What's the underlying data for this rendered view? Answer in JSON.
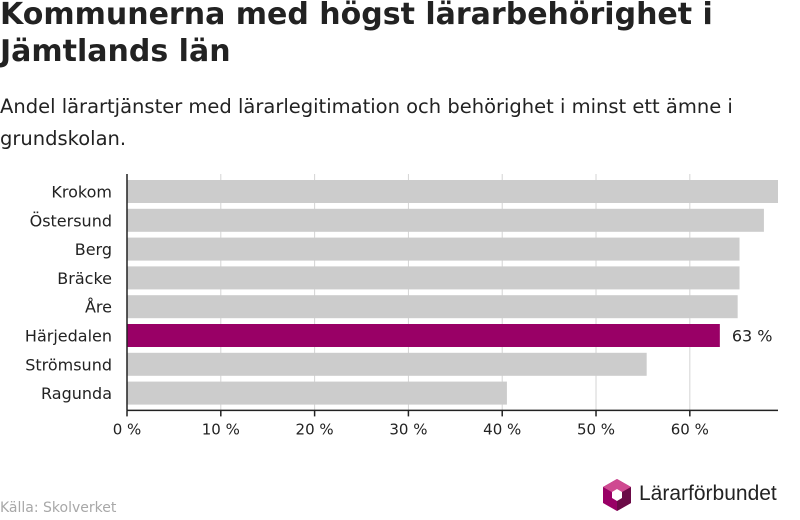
{
  "title": "Kommunerna med högst lärarbehörighet i Jämtlands län",
  "subtitle": "Andel lärartjänster med lärarlegitimation och behörighet i minst ett ämne i grundskolan.",
  "source": "Källa: Skolverket",
  "logo_text": "Lärarförbundet",
  "colors": {
    "bar": "#cccccc",
    "highlight": "#990066",
    "grid": "#d4d4d4",
    "axis": "#222222"
  },
  "chart_data": {
    "type": "bar",
    "orientation": "horizontal",
    "categories": [
      "Krokom",
      "Östersund",
      "Berg",
      "Bräcke",
      "Åre",
      "Härjedalen",
      "Strömsund",
      "Ragunda"
    ],
    "values": [
      69.4,
      67.9,
      65.3,
      65.3,
      65.1,
      63.2,
      55.4,
      40.5
    ],
    "highlight_category": "Härjedalen",
    "data_labels": [
      {
        "category": "Härjedalen",
        "text": "63 %"
      }
    ],
    "x_ticks": [
      0,
      10,
      20,
      30,
      40,
      50,
      60
    ],
    "x_tick_labels": [
      "0 %",
      "10 %",
      "20 %",
      "30 %",
      "40 %",
      "50 %",
      "60 %"
    ],
    "xlim": [
      0,
      69.4
    ],
    "grid": true
  }
}
